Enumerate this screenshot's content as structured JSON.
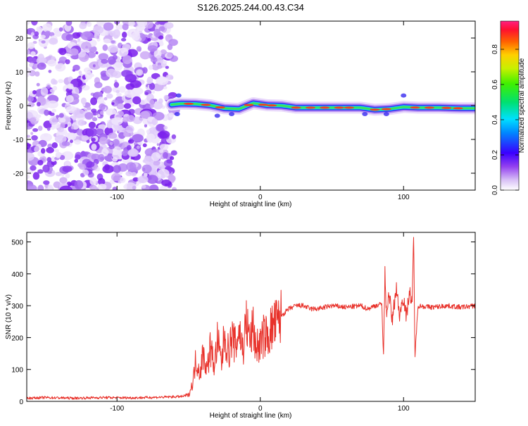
{
  "title": "S126.2025.244.00.43.C34",
  "chart_data": [
    {
      "type": "heatmap",
      "name": "spectrogram",
      "xlabel": "Height of straight line (km)",
      "ylabel": "Frequency (Hz)",
      "xlim": [
        -163,
        150
      ],
      "ylim": [
        -25,
        25
      ],
      "xticks": [
        -100,
        0,
        100
      ],
      "yticks": [
        -20,
        -10,
        0,
        10,
        20
      ],
      "noise_region_x": [
        -163,
        -62
      ],
      "signal_ridge": {
        "x": [
          -62,
          -55,
          -45,
          -35,
          -25,
          -15,
          -5,
          5,
          15,
          25,
          40,
          55,
          70,
          80,
          90,
          100,
          110,
          125,
          140,
          150
        ],
        "y": [
          0.3,
          0.6,
          0.5,
          0.1,
          -0.8,
          -1.0,
          0.7,
          0.1,
          0.0,
          -0.6,
          -0.6,
          -0.6,
          -0.6,
          -1.2,
          -1.0,
          -0.4,
          -0.6,
          -0.6,
          -0.8,
          -0.8
        ]
      },
      "colorbar": {
        "label": "Normalized spectral amplitude",
        "ticks": [
          "0.0",
          "0.2",
          "0.4",
          "0.6",
          "0.8"
        ],
        "range": [
          0,
          0.96
        ]
      }
    },
    {
      "type": "line",
      "name": "snr",
      "xlabel": "Height of straight line (km)",
      "ylabel": "SNR (10 * v/v)",
      "xlim": [
        -163,
        150
      ],
      "ylim": [
        0,
        530
      ],
      "xticks": [
        -100,
        0,
        100
      ],
      "yticks": [
        0,
        100,
        200,
        300,
        400,
        500
      ],
      "color": "#e8312a",
      "series": [
        {
          "name": "SNR",
          "x": [
            -163,
            -150,
            -130,
            -110,
            -90,
            -70,
            -55,
            -50,
            -47,
            -45,
            -42,
            -40,
            -37,
            -35,
            -32,
            -30,
            -27,
            -25,
            -22,
            -20,
            -17,
            -15,
            -12,
            -10,
            -7,
            -5,
            -3,
            0,
            3,
            5,
            8,
            10,
            13,
            15,
            20,
            25,
            30,
            35,
            40,
            50,
            60,
            70,
            75,
            80,
            85,
            86,
            87,
            88,
            90,
            92,
            95,
            97,
            100,
            102,
            104,
            106,
            107,
            108,
            110,
            120,
            130,
            140,
            150
          ],
          "values": [
            10,
            12,
            10,
            12,
            11,
            13,
            15,
            20,
            60,
            130,
            90,
            150,
            100,
            170,
            110,
            190,
            120,
            210,
            150,
            200,
            170,
            230,
            160,
            250,
            190,
            230,
            170,
            180,
            210,
            200,
            230,
            240,
            250,
            270,
            290,
            300,
            300,
            290,
            290,
            300,
            295,
            300,
            290,
            300,
            305,
            140,
            400,
            280,
            340,
            250,
            360,
            270,
            330,
            260,
            350,
            300,
            520,
            140,
            300,
            295,
            300,
            295,
            300
          ]
        }
      ]
    }
  ]
}
